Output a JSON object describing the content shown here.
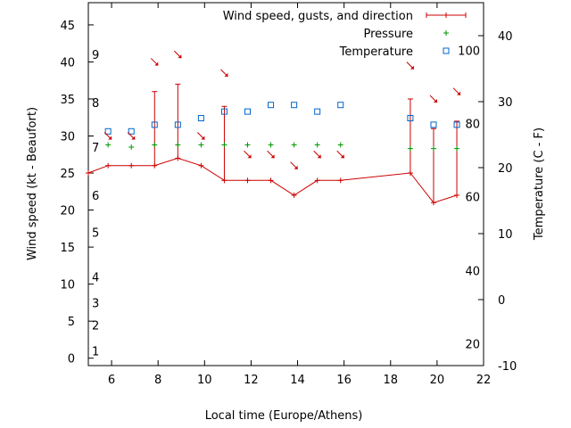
{
  "chart_data": {
    "type": "line",
    "xlabel": "Local time (Europe/Athens)",
    "ylabel": "Wind speed (kt - Beaufort)",
    "y2label": "Temperature (C - F)",
    "xlim": [
      5,
      22
    ],
    "ylim": [
      -1,
      48
    ],
    "y2lim": [
      -10,
      45
    ],
    "grid": false,
    "legend_position": "top-right",
    "x_ticks": [
      "6",
      "8",
      "10",
      "12",
      "14",
      "16",
      "18",
      "20",
      "22"
    ],
    "y_ticks": [
      "0",
      "5",
      "10",
      "15",
      "20",
      "25",
      "30",
      "35",
      "40",
      "45"
    ],
    "y2_ticks": [
      "-10",
      "0",
      "10",
      "20",
      "30",
      "40"
    ],
    "beaufort_labels": [
      {
        "label": "1",
        "y": 1
      },
      {
        "label": "2",
        "y": 4.5
      },
      {
        "label": "3",
        "y": 7.5
      },
      {
        "label": "4",
        "y": 11
      },
      {
        "label": "5",
        "y": 17
      },
      {
        "label": "6",
        "y": 22
      },
      {
        "label": "7",
        "y": 28.5
      },
      {
        "label": "8",
        "y": 34.5
      },
      {
        "label": "9",
        "y": 41
      }
    ],
    "fahrenheit_labels": [
      {
        "label": "20",
        "y2": -6.7
      },
      {
        "label": "40",
        "y2": 4.4
      },
      {
        "label": "60",
        "y2": 15.6
      },
      {
        "label": "80",
        "y2": 26.7
      },
      {
        "label": "100",
        "y2": 37.8
      }
    ],
    "legend": [
      {
        "label": "Wind speed, gusts, and direction",
        "series": "wind"
      },
      {
        "label": "Pressure",
        "series": "pressure"
      },
      {
        "label": "Temperature",
        "series": "temperature"
      }
    ],
    "wind": {
      "color": "#cc0000",
      "x": [
        5,
        5.85,
        6.85,
        7.85,
        8.85,
        9.85,
        10.85,
        11.85,
        12.85,
        13.85,
        14.85,
        15.85,
        18.85,
        19.85,
        20.85
      ],
      "speed": [
        25,
        26,
        26,
        26,
        27,
        26,
        24,
        24,
        24,
        22,
        24,
        24,
        25,
        21,
        22
      ],
      "gust": [
        null,
        null,
        null,
        36,
        37,
        null,
        34,
        null,
        null,
        null,
        null,
        null,
        35,
        31,
        32
      ],
      "direction_marks": [
        {
          "x": 5.85,
          "y": 30
        },
        {
          "x": 6.85,
          "y": 30
        },
        {
          "x": 7.85,
          "y": 40
        },
        {
          "x": 8.85,
          "y": 41
        },
        {
          "x": 9.85,
          "y": 30
        },
        {
          "x": 10.85,
          "y": 38.5
        },
        {
          "x": 11.85,
          "y": 27.5
        },
        {
          "x": 12.85,
          "y": 27.5
        },
        {
          "x": 13.85,
          "y": 26
        },
        {
          "x": 14.85,
          "y": 27.5
        },
        {
          "x": 15.85,
          "y": 27.5
        },
        {
          "x": 18.85,
          "y": 39.5
        },
        {
          "x": 19.85,
          "y": 35
        },
        {
          "x": 20.85,
          "y": 36
        }
      ]
    },
    "pressure": {
      "color": "#009900",
      "x": [
        5.85,
        6.85,
        7.85,
        8.85,
        9.85,
        10.85,
        11.85,
        12.85,
        13.85,
        14.85,
        15.85,
        18.85,
        19.85,
        20.85
      ],
      "y": [
        28.8,
        28.5,
        28.8,
        28.8,
        28.8,
        28.8,
        28.8,
        28.8,
        28.8,
        28.8,
        28.8,
        28.3,
        28.3,
        28.3
      ]
    },
    "temperature": {
      "color": "#0066cc",
      "x": [
        5.85,
        6.85,
        7.85,
        8.85,
        9.85,
        10.85,
        11.85,
        12.85,
        13.85,
        14.85,
        15.85,
        18.85,
        19.85,
        20.85
      ],
      "y2": [
        25.5,
        25.5,
        26.5,
        26.5,
        27.5,
        28.5,
        28.5,
        29.5,
        29.5,
        28.5,
        29.5,
        27.5,
        26.5,
        26.5
      ]
    }
  }
}
